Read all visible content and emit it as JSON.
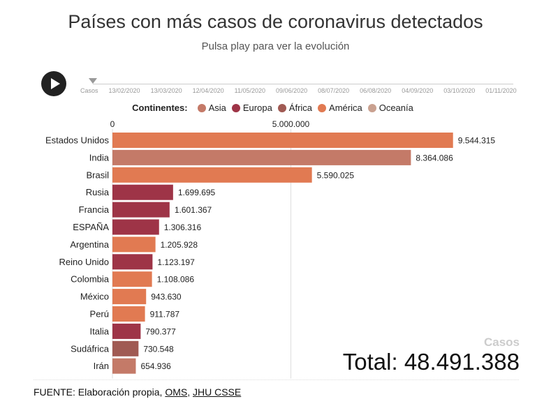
{
  "header": {
    "title": "Países con más casos de coronavirus detectados",
    "subtitle": "Pulsa play para ver la evolución"
  },
  "timeline": {
    "label": "Casos",
    "dates": [
      "13/02/2020",
      "13/03/2020",
      "12/04/2020",
      "11/05/2020",
      "09/06/2020",
      "08/07/2020",
      "06/08/2020",
      "04/09/2020",
      "03/10/2020",
      "01/11/2020"
    ]
  },
  "legend": {
    "title": "Continentes:",
    "items": [
      {
        "label": "Asia",
        "color": "#c47a68"
      },
      {
        "label": "Europa",
        "color": "#9e3447"
      },
      {
        "label": "África",
        "color": "#a05a53"
      },
      {
        "label": "América",
        "color": "#e17a52"
      },
      {
        "label": "Oceanía",
        "color": "#c9a190"
      }
    ]
  },
  "total": {
    "caption": "Casos",
    "text": "Total: 48.491.388"
  },
  "source": {
    "prefix": "FUENTE: Elaboración propia, ",
    "link1": "OMS",
    "separator": ", ",
    "link2": "JHU CSSE"
  },
  "chart_data": {
    "type": "bar",
    "orientation": "horizontal",
    "xlim": [
      0,
      10000000
    ],
    "ticks": [
      {
        "value": 0,
        "label": "0"
      },
      {
        "value": 5000000,
        "label": "5.000.000"
      }
    ],
    "bars": [
      {
        "country": "Estados Unidos",
        "value": 9544315,
        "label": "9.544.315",
        "continent": "América"
      },
      {
        "country": "India",
        "value": 8364086,
        "label": "8.364.086",
        "continent": "Asia"
      },
      {
        "country": "Brasil",
        "value": 5590025,
        "label": "5.590.025",
        "continent": "América"
      },
      {
        "country": "Rusia",
        "value": 1699695,
        "label": "1.699.695",
        "continent": "Europa"
      },
      {
        "country": "Francia",
        "value": 1601367,
        "label": "1.601.367",
        "continent": "Europa"
      },
      {
        "country": "ESPAÑA",
        "value": 1306316,
        "label": "1.306.316",
        "continent": "Europa"
      },
      {
        "country": "Argentina",
        "value": 1205928,
        "label": "1.205.928",
        "continent": "América"
      },
      {
        "country": "Reino Unido",
        "value": 1123197,
        "label": "1.123.197",
        "continent": "Europa"
      },
      {
        "country": "Colombia",
        "value": 1108086,
        "label": "1.108.086",
        "continent": "América"
      },
      {
        "country": "México",
        "value": 943630,
        "label": "943.630",
        "continent": "América"
      },
      {
        "country": "Perú",
        "value": 911787,
        "label": "911.787",
        "continent": "América"
      },
      {
        "country": "Italia",
        "value": 790377,
        "label": "790.377",
        "continent": "Europa"
      },
      {
        "country": "Sudáfrica",
        "value": 730548,
        "label": "730.548",
        "continent": "África"
      },
      {
        "country": "Irán",
        "value": 654936,
        "label": "654.936",
        "continent": "Asia"
      }
    ]
  }
}
